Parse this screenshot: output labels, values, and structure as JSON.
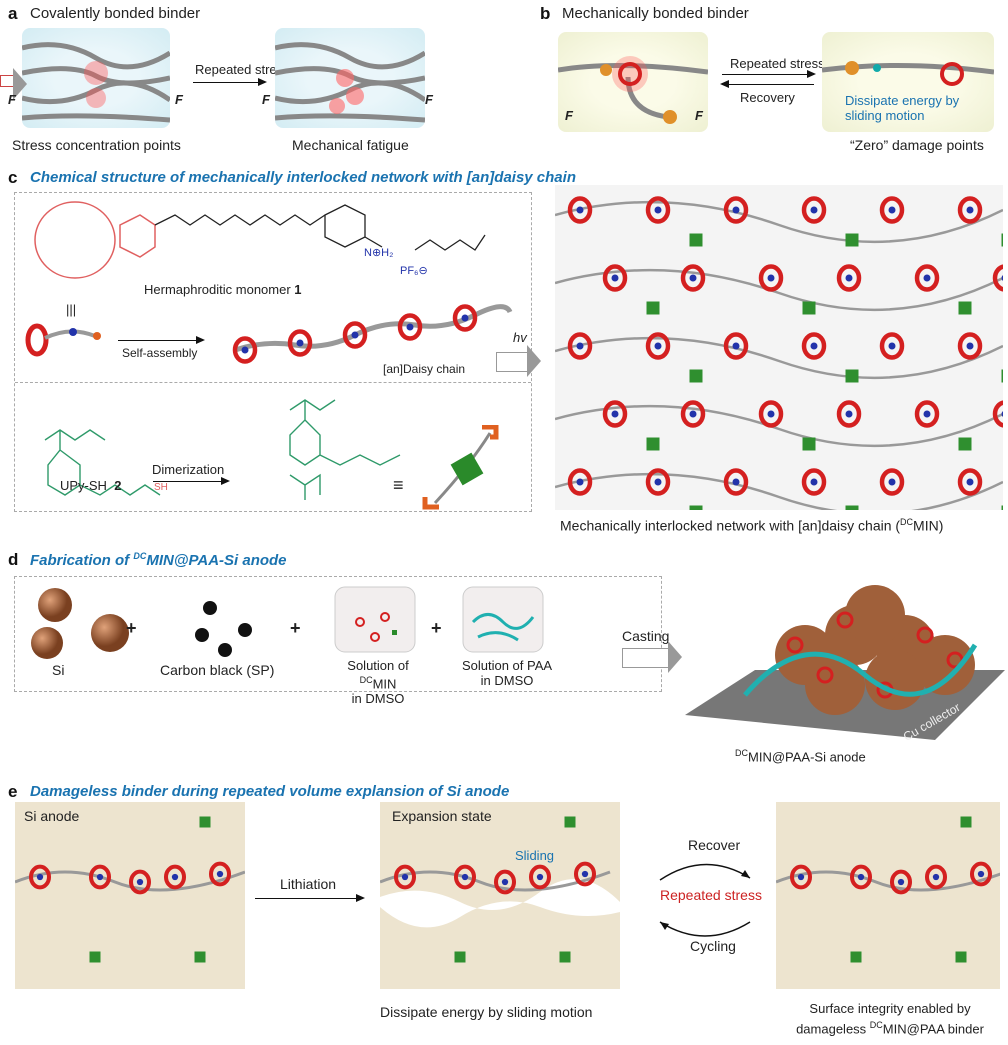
{
  "panel_a": {
    "letter": "a",
    "title": "Covalently bonded binder",
    "arrow_label": "Repeated stress",
    "force": "F",
    "caption_left": "Stress concentration points",
    "caption_right": "Mechanical fatigue"
  },
  "panel_b": {
    "letter": "b",
    "title": "Mechanically bonded binder",
    "arrow_forward": "Repeated stress",
    "arrow_back": "Recovery",
    "force": "F",
    "note": "Dissipate energy by sliding motion",
    "caption": "“Zero” damage points"
  },
  "panel_c": {
    "letter": "c",
    "title": "Chemical structure of mechanically interlocked network with [an]daisy chain",
    "monomer_label": "Hermaphroditic monomer",
    "monomer_number": "1",
    "equiv": "|||",
    "nh2": "N⊕H₂",
    "pf6": "PF₆⊖",
    "self_assembly": "Self-assembly",
    "daisy_chain": "[an]Daisy chain",
    "dimerization": "Dimerization",
    "upy_label": "UPy-SH",
    "upy_number": "2",
    "sh": "SH",
    "equals": "≡",
    "hv": "hv",
    "network_caption": "Mechanically interlocked network with [an]daisy chain (",
    "dc": "DC",
    "min": "MIN)"
  },
  "panel_d": {
    "letter": "d",
    "title_pre": "Fabrication of ",
    "dc": "DC",
    "title_post": "MIN@PAA-Si anode",
    "si": "Si",
    "carbon": "Carbon black (SP)",
    "sol_min_1": "Solution of ",
    "sol_min_2": "MIN",
    "sol_min_3": "in DMSO",
    "sol_paa_1": "Solution of PAA",
    "sol_paa_2": "in DMSO",
    "plus": "+",
    "casting": "Casting",
    "cu": "Cu collector",
    "anode_label": "MIN@PAA-Si anode"
  },
  "panel_e": {
    "letter": "e",
    "title": "Damageless binder during repeated volume explansion of Si anode",
    "si_anode": "Si anode",
    "lithiation": "Lithiation",
    "expansion": "Expansion state",
    "sliding": "Sliding",
    "caption_mid": "Dissipate energy by sliding motion",
    "recover": "Recover",
    "repeated": "Repeated stress",
    "cycling": "Cycling",
    "caption_right_1": "Surface integrity enabled by",
    "caption_right_2": "damageless ",
    "caption_right_3": "MIN@PAA binder"
  },
  "colors": {
    "accent": "#1a73b0",
    "ring": "#d42020",
    "upy": "#2f8f2f",
    "sphere_blue": "#2233aa",
    "si": "#a0603a",
    "red_text": "#cc2222"
  }
}
